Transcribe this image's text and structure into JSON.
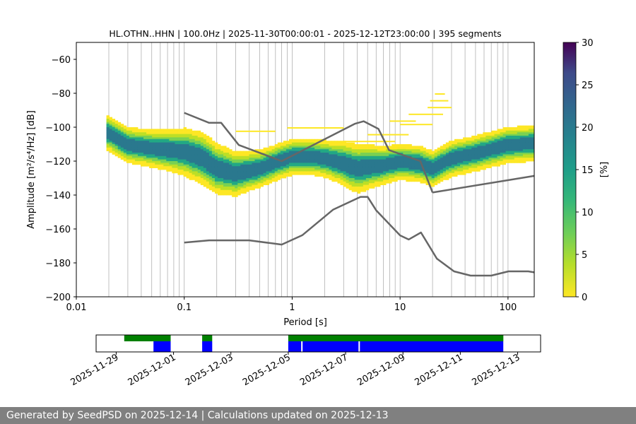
{
  "chart_data": {
    "type": "heatmap",
    "title": "HL.OTHN..HHN | 100.0Hz | 2025-11-30T00:00:01 - 2025-12-12T23:00:00 | 395 segments",
    "xlabel": "Period [s]",
    "ylabel": "Amplitude [m²/s⁴/Hz] [dB]",
    "x_scale": "log",
    "xlim": [
      0.01,
      175
    ],
    "ylim": [
      -200,
      -50
    ],
    "x_ticks": [
      0.01,
      0.1,
      1,
      10,
      100
    ],
    "x_tick_labels": [
      "0.01",
      "0.1",
      "1",
      "10",
      "100"
    ],
    "y_ticks": [
      -60,
      -80,
      -100,
      -120,
      -140,
      -160,
      -180,
      -200
    ],
    "y_tick_labels": [
      "−60",
      "−80",
      "−100",
      "−120",
      "−140",
      "−160",
      "−180",
      "−200"
    ],
    "grid": "x-only",
    "colorbar": {
      "label": "[%]",
      "colormap": "viridis_r",
      "min": 0,
      "max": 30,
      "ticks": [
        0,
        5,
        10,
        15,
        20,
        25,
        30
      ],
      "tick_labels": [
        "0",
        "5",
        "10",
        "15",
        "20",
        "25",
        "30"
      ]
    },
    "psd_mode": {
      "period": [
        0.02,
        0.03,
        0.05,
        0.07,
        0.1,
        0.15,
        0.2,
        0.3,
        0.5,
        0.8,
        1,
        1.5,
        2,
        3,
        4,
        5,
        7,
        10,
        15,
        20,
        30,
        50,
        100,
        175
      ],
      "db": [
        -103,
        -110,
        -112,
        -113,
        -114,
        -118,
        -124,
        -127,
        -124,
        -119,
        -117,
        -117,
        -118,
        -121,
        -124,
        -123,
        -122,
        -120,
        -121,
        -124,
        -118,
        -115,
        -110,
        -109
      ]
    },
    "reference_curves": [
      {
        "name": "NHNM",
        "period": [
          0.1,
          0.17,
          0.22,
          0.32,
          0.8,
          3.8,
          4.6,
          6.3,
          7.9,
          15.4,
          20
        ],
        "db": [
          -91.5,
          -97.4,
          -97.4,
          -110.5,
          -120,
          -98,
          -96.5,
          -101,
          -113.5,
          -120,
          -138.5
        ]
      },
      {
        "name": "NHNM-LP",
        "period": [
          20,
          175
        ],
        "db": [
          -138.5,
          -128.7
        ]
      },
      {
        "name": "NLNM",
        "period": [
          0.1,
          0.17,
          0.4,
          0.8,
          1.24,
          2.4,
          4.3,
          5,
          6,
          10,
          12,
          15.6,
          21.9,
          31.6,
          45,
          70,
          101,
          154,
          175
        ],
        "db": [
          -168,
          -166.7,
          -166.7,
          -169.2,
          -163.7,
          -148.6,
          -141.1,
          -141.1,
          -149,
          -163.8,
          -166.2,
          -162.1,
          -177.5,
          -185,
          -187.5,
          -187.5,
          -185,
          -185,
          -185.6
        ]
      }
    ]
  },
  "availability": {
    "date_ticks": [
      "2025-11-29",
      "2025-12-01",
      "2025-12-03",
      "2025-12-05",
      "2025-12-07",
      "2025-12-09",
      "2025-12-11",
      "2025-12-13"
    ],
    "range_days": [
      -1.7,
      13.8
    ],
    "green_segments": [
      [
        -0.72,
        0.9
      ],
      [
        2.0,
        2.35
      ],
      [
        5.0,
        12.5
      ]
    ],
    "blue_segments": [
      [
        0.3,
        0.9
      ],
      [
        2.0,
        2.35
      ],
      [
        5.0,
        5.45
      ],
      [
        5.5,
        7.45
      ],
      [
        7.5,
        12.5
      ]
    ],
    "colors": {
      "green": "#008000",
      "blue": "#0000ff"
    }
  },
  "footer": {
    "text": "Generated by SeedPSD on 2025-12-14 | Calculations updated on 2025-12-13"
  }
}
